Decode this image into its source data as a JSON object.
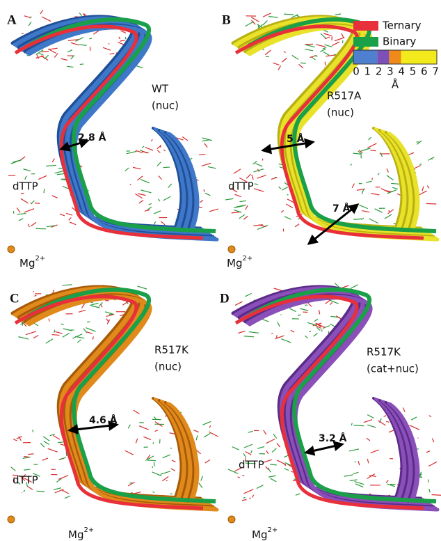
{
  "legend": {
    "items": [
      "Ternary",
      "Binary"
    ],
    "scale_ticks": [
      0,
      1,
      2,
      3,
      4,
      5,
      6,
      7
    ],
    "unit": "Å"
  },
  "panels": [
    {
      "label": "A",
      "annotation": [
        "WT",
        "(nuc)"
      ],
      "distances": [
        "2.8 Å"
      ],
      "ligand": "dTTP",
      "ion": {
        "base": "Mg",
        "charge": "2+"
      }
    },
    {
      "label": "B",
      "annotation": [
        "R517A",
        "(nuc)"
      ],
      "distances": [
        "5 Å",
        "7 Å"
      ],
      "ligand": "dTTP",
      "ion": {
        "base": "Mg",
        "charge": "2+"
      }
    },
    {
      "label": "C",
      "annotation": [
        "R517K",
        "(nuc)"
      ],
      "distances": [
        "4.6 Å"
      ],
      "ligand": "dTTP",
      "ion": {
        "base": "Mg",
        "charge": "2+"
      }
    },
    {
      "label": "D",
      "annotation": [
        "R517K",
        "(cat+nuc)"
      ],
      "distances": [
        "3.2 Å"
      ],
      "ligand": "dTTP",
      "ion": {
        "base": "Mg",
        "charge": "2+"
      }
    }
  ]
}
